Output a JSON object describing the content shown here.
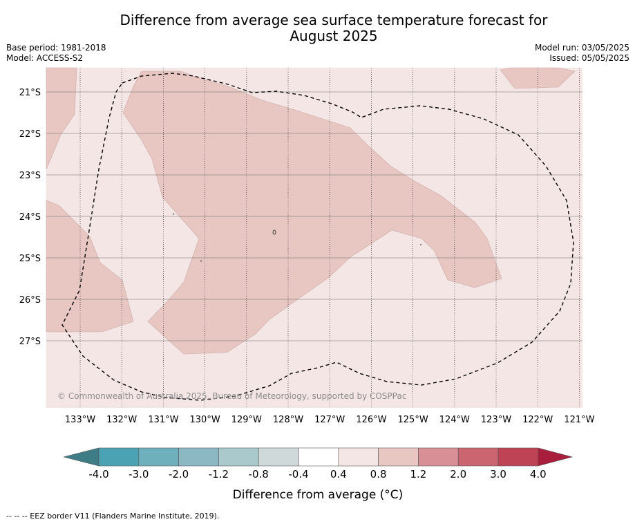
{
  "title_line1": "Difference from average sea surface temperature forecast for",
  "title_line2": "August 2025",
  "base_period": "Base period: 1981-2018",
  "model": "Model: ACCESS-S2",
  "model_run": "Model run: 03/05/2025",
  "issued": "Issued: 05/05/2025",
  "copyright": "© Commonwealth of Australia 2025, Bureau of Meteorology, supported by COSPPac",
  "lat_labels": [
    "21°S",
    "22°S",
    "23°S",
    "24°S",
    "25°S",
    "26°S",
    "27°S"
  ],
  "lon_labels": [
    "133°W",
    "132°W",
    "131°W",
    "130°W",
    "129°W",
    "128°W",
    "127°W",
    "126°W",
    "125°W",
    "124°W",
    "123°W",
    "122°W",
    "121°W"
  ],
  "colorbar": {
    "title": "Difference from average (°C)",
    "tick_labels": [
      "-4.0",
      "-3.0",
      "-2.0",
      "-1.2",
      "-0.8",
      "-0.4",
      "0.4",
      "0.8",
      "1.2",
      "2.0",
      "3.0",
      "4.0"
    ],
    "colors": [
      "#3f7d86",
      "#4aa2b3",
      "#6fb0bd",
      "#8cb8c4",
      "#a9c9cd",
      "#d0d9da",
      "#ffffff",
      "#f5e6e6",
      "#e8c6c2",
      "#d88f95",
      "#cb6670",
      "#be4455",
      "#a81e3c"
    ]
  },
  "map": {
    "background_color": "#f5e6e6",
    "anomaly_color": "#e8c6c2",
    "lat_range": [
      "20.4°S",
      "28.6°S"
    ],
    "lon_range": [
      "133.8°W",
      "120.9°W"
    ]
  },
  "footer": "--  --  -- EEZ border V11 (Flanders Marine Institute, 2019)."
}
